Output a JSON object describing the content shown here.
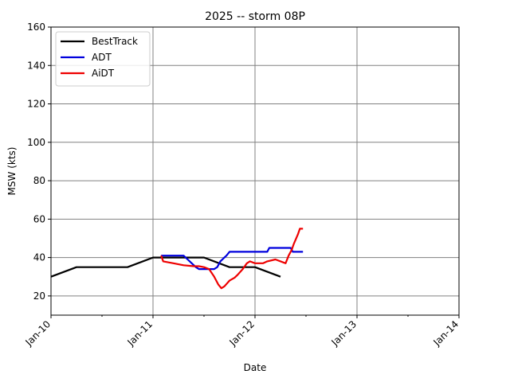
{
  "chart_data": {
    "type": "line",
    "title": "2025 -- storm 08P",
    "xlabel": "Date",
    "ylabel": "MSW (kts)",
    "x_range": [
      "Jan-10",
      "Jan-14"
    ],
    "ylim": [
      10,
      160
    ],
    "x_tick_labels": [
      "Jan-10",
      "Jan-11",
      "Jan-12",
      "Jan-13",
      "Jan-14"
    ],
    "y_tick_labels": [
      "20",
      "40",
      "60",
      "80",
      "100",
      "120",
      "140",
      "160"
    ],
    "grid": true,
    "legend_position": "upper-left",
    "series": [
      {
        "name": "BestTrack",
        "color": "#000000",
        "points": [
          [
            0.0,
            30
          ],
          [
            0.25,
            35
          ],
          [
            0.75,
            35
          ],
          [
            1.0,
            40
          ],
          [
            1.5,
            40
          ],
          [
            1.75,
            35
          ],
          [
            2.0,
            35
          ],
          [
            2.25,
            30
          ]
        ]
      },
      {
        "name": "ADT",
        "color": "#0000dd",
        "points": [
          [
            1.08,
            41
          ],
          [
            1.3,
            41
          ],
          [
            1.34,
            39
          ],
          [
            1.38,
            37
          ],
          [
            1.42,
            35
          ],
          [
            1.45,
            34
          ],
          [
            1.6,
            34
          ],
          [
            1.63,
            35
          ],
          [
            1.66,
            38
          ],
          [
            1.7,
            40
          ],
          [
            1.72,
            41
          ],
          [
            1.75,
            43
          ],
          [
            2.12,
            43
          ],
          [
            2.14,
            45
          ],
          [
            2.35,
            45
          ],
          [
            2.37,
            43
          ],
          [
            2.47,
            43
          ]
        ]
      },
      {
        "name": "AiDT",
        "color": "#ee0000",
        "points": [
          [
            1.08,
            41
          ],
          [
            1.1,
            38
          ],
          [
            1.2,
            37
          ],
          [
            1.3,
            36
          ],
          [
            1.4,
            35.5
          ],
          [
            1.45,
            35.5
          ],
          [
            1.5,
            35
          ],
          [
            1.55,
            34
          ],
          [
            1.6,
            30
          ],
          [
            1.64,
            26
          ],
          [
            1.67,
            24
          ],
          [
            1.7,
            25
          ],
          [
            1.75,
            28
          ],
          [
            1.8,
            29.5
          ],
          [
            1.83,
            31
          ],
          [
            1.88,
            34
          ],
          [
            1.92,
            37
          ],
          [
            1.95,
            38
          ],
          [
            2.0,
            37
          ],
          [
            2.08,
            37
          ],
          [
            2.12,
            38
          ],
          [
            2.2,
            39
          ],
          [
            2.3,
            37
          ],
          [
            2.33,
            41
          ],
          [
            2.36,
            44
          ],
          [
            2.38,
            47
          ],
          [
            2.42,
            52
          ],
          [
            2.44,
            55
          ],
          [
            2.47,
            55
          ]
        ]
      }
    ]
  }
}
